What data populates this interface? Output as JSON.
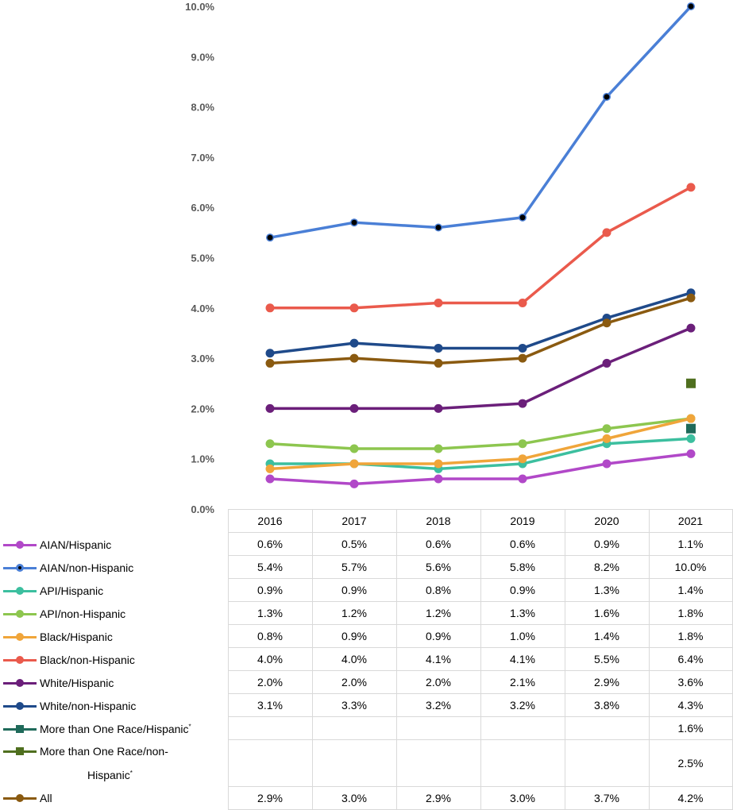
{
  "chart_data": {
    "type": "line",
    "title": "",
    "xlabel": "",
    "ylabel": "",
    "ylim": [
      0,
      10
    ],
    "yticks": [
      "0.0%",
      "1.0%",
      "2.0%",
      "3.0%",
      "4.0%",
      "5.0%",
      "6.0%",
      "7.0%",
      "8.0%",
      "9.0%",
      "10.0%"
    ],
    "categories": [
      "2016",
      "2017",
      "2018",
      "2019",
      "2020",
      "2021"
    ],
    "series": [
      {
        "id": "aian-hispanic",
        "name": "AIAN/Hispanic",
        "color": "#b148c8",
        "marker": "circle",
        "values": [
          0.6,
          0.5,
          0.6,
          0.6,
          0.9,
          1.1
        ],
        "labels": [
          "0.6%",
          "0.5%",
          "0.6%",
          "0.6%",
          "0.9%",
          "1.1%"
        ]
      },
      {
        "id": "aian-non-hispanic",
        "name": "AIAN/non-Hispanic",
        "color": "#4a7fd6",
        "marker": "circle-black",
        "values": [
          5.4,
          5.7,
          5.6,
          5.8,
          8.2,
          10.0
        ],
        "labels": [
          "5.4%",
          "5.7%",
          "5.6%",
          "5.8%",
          "8.2%",
          "10.0%"
        ]
      },
      {
        "id": "api-hispanic",
        "name": "API/Hispanic",
        "color": "#3cbf9f",
        "marker": "circle",
        "values": [
          0.9,
          0.9,
          0.8,
          0.9,
          1.3,
          1.4
        ],
        "labels": [
          "0.9%",
          "0.9%",
          "0.8%",
          "0.9%",
          "1.3%",
          "1.4%"
        ]
      },
      {
        "id": "api-non-hispanic",
        "name": "API/non-Hispanic",
        "color": "#8dc64f",
        "marker": "circle",
        "values": [
          1.3,
          1.2,
          1.2,
          1.3,
          1.6,
          1.8
        ],
        "labels": [
          "1.3%",
          "1.2%",
          "1.2%",
          "1.3%",
          "1.6%",
          "1.8%"
        ]
      },
      {
        "id": "black-hispanic",
        "name": "Black/Hispanic",
        "color": "#f0a53a",
        "marker": "circle",
        "values": [
          0.8,
          0.9,
          0.9,
          1.0,
          1.4,
          1.8
        ],
        "labels": [
          "0.8%",
          "0.9%",
          "0.9%",
          "1.0%",
          "1.4%",
          "1.8%"
        ]
      },
      {
        "id": "black-non-hispanic",
        "name": "Black/non-Hispanic",
        "color": "#ea5a4c",
        "marker": "circle",
        "values": [
          4.0,
          4.0,
          4.1,
          4.1,
          5.5,
          6.4
        ],
        "labels": [
          "4.0%",
          "4.0%",
          "4.1%",
          "4.1%",
          "5.5%",
          "6.4%"
        ]
      },
      {
        "id": "white-hispanic",
        "name": "White/Hispanic",
        "color": "#6b1f7a",
        "marker": "circle",
        "values": [
          2.0,
          2.0,
          2.0,
          2.1,
          2.9,
          3.6
        ],
        "labels": [
          "2.0%",
          "2.0%",
          "2.0%",
          "2.1%",
          "2.9%",
          "3.6%"
        ]
      },
      {
        "id": "white-non-hispanic",
        "name": "White/non-Hispanic",
        "color": "#1f4a8a",
        "marker": "circle",
        "values": [
          3.1,
          3.3,
          3.2,
          3.2,
          3.8,
          4.3
        ],
        "labels": [
          "3.1%",
          "3.3%",
          "3.2%",
          "3.2%",
          "3.8%",
          "4.3%"
        ]
      },
      {
        "id": "multi-hispanic",
        "name": "More than One Race/Hispanic",
        "star": "*",
        "color": "#1f6a5a",
        "marker": "square",
        "values": [
          null,
          null,
          null,
          null,
          null,
          1.6
        ],
        "labels": [
          "",
          "",
          "",
          "",
          "",
          "1.6%"
        ]
      },
      {
        "id": "multi-non-hispanic",
        "name": "More than One Race/non-",
        "name_line2": "Hispanic",
        "star": "*",
        "color": "#4f6f1f",
        "marker": "square",
        "values": [
          null,
          null,
          null,
          null,
          null,
          2.5
        ],
        "labels": [
          "",
          "",
          "",
          "",
          "",
          "2.5%"
        ]
      },
      {
        "id": "all",
        "name": "All",
        "color": "#8a5a10",
        "marker": "circle",
        "values": [
          2.9,
          3.0,
          2.9,
          3.0,
          3.7,
          4.2
        ],
        "labels": [
          "2.9%",
          "3.0%",
          "2.9%",
          "3.0%",
          "3.7%",
          "4.2%"
        ]
      }
    ]
  }
}
